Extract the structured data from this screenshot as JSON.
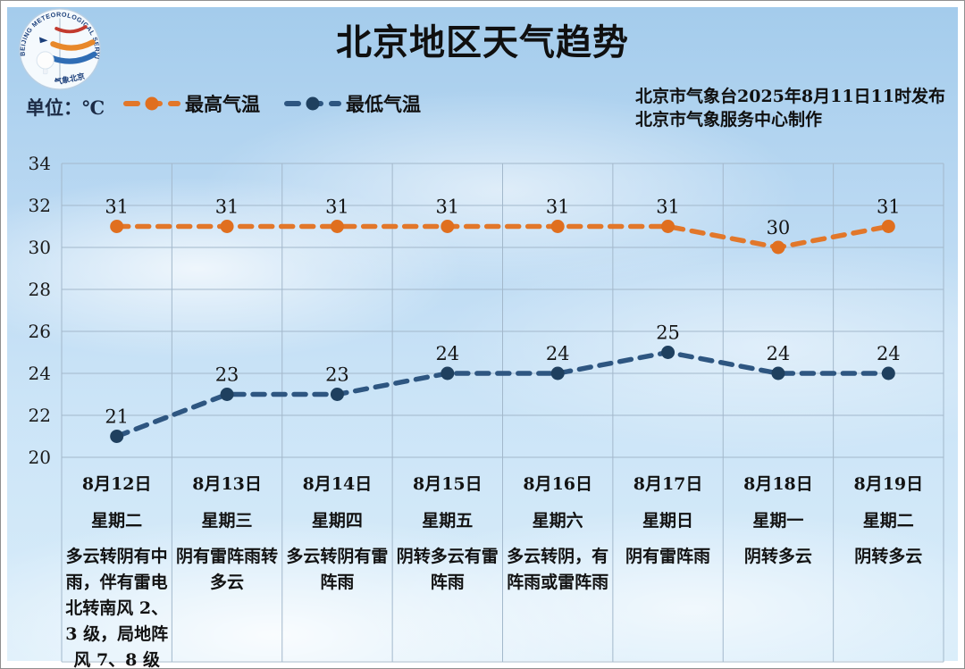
{
  "header": {
    "title": "北京地区天气趋势"
  },
  "logo": {
    "arc_text": "BEIJING METEOROLOGICAL SERVICE",
    "cn_text": "气象北京"
  },
  "legend": {
    "unit_label": "单位：℃"
  },
  "source": {
    "line1": "北京市气象台2025年8月11日11时发布",
    "line2": "北京市气象服务中心制作"
  },
  "chart_data": {
    "type": "line",
    "title": "北京地区天气趋势",
    "unit": "℃",
    "categories": [
      "8月12日",
      "8月13日",
      "8月14日",
      "8月15日",
      "8月16日",
      "8月17日",
      "8月18日",
      "8月19日"
    ],
    "weekdays": [
      "星期二",
      "星期三",
      "星期四",
      "星期五",
      "星期六",
      "星期日",
      "星期一",
      "星期二"
    ],
    "series": [
      {
        "name": "最高气温",
        "values": [
          31,
          31,
          31,
          31,
          31,
          31,
          30,
          31
        ],
        "line_color": "#e2772a",
        "dot_color": "#e06f1f",
        "style": "dashed"
      },
      {
        "name": "最低气温",
        "values": [
          21,
          23,
          23,
          24,
          24,
          25,
          24,
          24
        ],
        "line_color": "#2e5681",
        "dot_color": "#1f405f",
        "style": "dashed"
      }
    ],
    "ylim": [
      20,
      34
    ],
    "ytick_step": 2,
    "grid": true,
    "legend_position": "top-left",
    "value_labels": true
  },
  "forecast": [
    {
      "date": "8月12日",
      "weekday": "星期二",
      "weather": "多云转阴有中雨，伴有雷电北转南风 2、3 级，局地阵风 7、8 级"
    },
    {
      "date": "8月13日",
      "weekday": "星期三",
      "weather": "阴有雷阵雨转多云"
    },
    {
      "date": "8月14日",
      "weekday": "星期四",
      "weather": "多云转阴有雷阵雨"
    },
    {
      "date": "8月15日",
      "weekday": "星期五",
      "weather": "阴转多云有雷阵雨"
    },
    {
      "date": "8月16日",
      "weekday": "星期六",
      "weather": "多云转阴，有阵雨或雷阵雨"
    },
    {
      "date": "8月17日",
      "weekday": "星期日",
      "weather": "阴有雷阵雨"
    },
    {
      "date": "8月18日",
      "weekday": "星期一",
      "weather": "阴转多云"
    },
    {
      "date": "8月19日",
      "weekday": "星期二",
      "weather": "阴转多云"
    }
  ],
  "colors": {
    "grid": "#a3b8cb",
    "text": "#111111",
    "unit_text": "#1c2b45"
  }
}
